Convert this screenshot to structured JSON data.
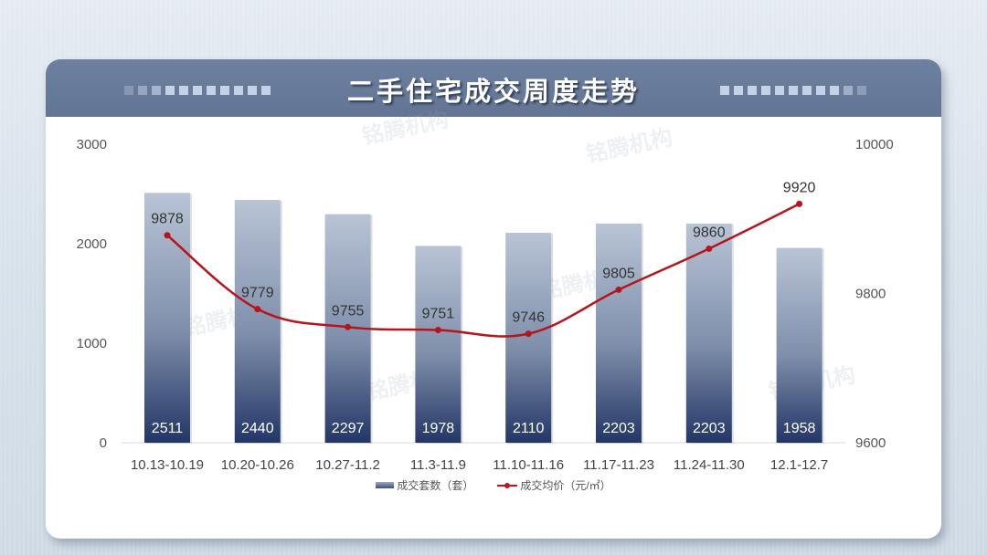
{
  "title": "二手住宅成交周度走势",
  "watermark": "铭腾机构",
  "legend": {
    "bar_label": "成交套数（套）",
    "line_label": "成交均价（元/㎡）"
  },
  "colors": {
    "header_bg": "#6b7d9c",
    "bar_top": "#b4c0d2",
    "bar_bottom": "#26396a",
    "line": "#c0141e",
    "card_bg": "#ffffff",
    "page_bg": "#d9e3ec"
  },
  "axes": {
    "left_ticks": [
      "0",
      "1000",
      "2000",
      "3000"
    ],
    "right_ticks": [
      "9600",
      "9800",
      "10000"
    ]
  },
  "chart_data": {
    "type": "bar+line",
    "title": "二手住宅成交周度走势",
    "categories": [
      "10.13-10.19",
      "10.20-10.26",
      "10.27-11.2",
      "11.3-11.9",
      "11.10-11.16",
      "11.17-11.23",
      "11.24-11.30",
      "12.1-12.7"
    ],
    "series": [
      {
        "name": "成交套数（套）",
        "type": "bar",
        "axis": "left",
        "values": [
          2511,
          2440,
          2297,
          1978,
          2110,
          2203,
          2203,
          1958
        ]
      },
      {
        "name": "成交均价（元/㎡）",
        "type": "line",
        "axis": "right",
        "values": [
          9878,
          9779,
          9755,
          9751,
          9746,
          9805,
          9860,
          9920
        ]
      }
    ],
    "ylim_left": [
      0,
      3000
    ],
    "ylim_right": [
      9600,
      10000
    ],
    "left_ticks": [
      0,
      1000,
      2000,
      3000
    ],
    "right_ticks": [
      9600,
      9800,
      10000
    ],
    "grid": false,
    "legend_position": "bottom",
    "xlabel": "",
    "ylabel_left": "",
    "ylabel_right": ""
  }
}
